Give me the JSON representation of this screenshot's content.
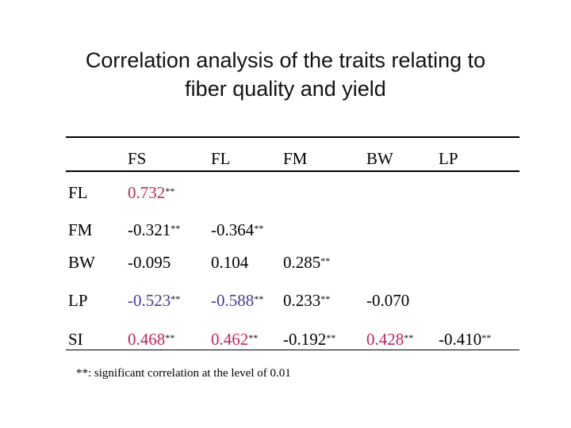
{
  "title": {
    "line1": "Correlation analysis of the traits relating to",
    "line2": "fiber quality and yield"
  },
  "colors": {
    "pink": "#c0245e",
    "purple": "#4b3a8f",
    "black": "#000000"
  },
  "table": {
    "columns": [
      "FS",
      "FL",
      "FM",
      "BW",
      "LP"
    ],
    "rows": [
      {
        "label": "FL",
        "cells": [
          {
            "v": "0.732",
            "sig": "**",
            "color": "#c0245e"
          }
        ]
      },
      {
        "label": "FM",
        "cells": [
          {
            "v": "-0.321",
            "sig": "**",
            "color": "#000000"
          },
          {
            "v": "-0.364",
            "sig": "**",
            "color": "#000000"
          }
        ]
      },
      {
        "label": "BW",
        "cells": [
          {
            "v": "-0.095",
            "sig": "",
            "color": "#000000"
          },
          {
            "v": "0.104",
            "sig": "",
            "color": "#000000"
          },
          {
            "v": "0.285",
            "sig": "**",
            "color": "#000000"
          }
        ]
      },
      {
        "label": "LP",
        "cells": [
          {
            "v": "-0.523",
            "sig": "**",
            "color": "#4b3a8f"
          },
          {
            "v": "-0.588",
            "sig": "**",
            "color": "#4b3a8f"
          },
          {
            "v": "0.233",
            "sig": "**",
            "color": "#000000"
          },
          {
            "v": "-0.070",
            "sig": "",
            "color": "#000000"
          }
        ]
      },
      {
        "label": "SI",
        "cells": [
          {
            "v": "0.468",
            "sig": "**",
            "color": "#c0245e"
          },
          {
            "v": "0.462",
            "sig": "**",
            "color": "#c0245e"
          },
          {
            "v": "-0.192",
            "sig": "**",
            "color": "#000000"
          },
          {
            "v": "0.428",
            "sig": "**",
            "color": "#c0245e"
          },
          {
            "v": "-0.410",
            "sig": "**",
            "color": "#000000"
          }
        ]
      }
    ]
  },
  "footnote": "**: significant correlation at the level of 0.01"
}
